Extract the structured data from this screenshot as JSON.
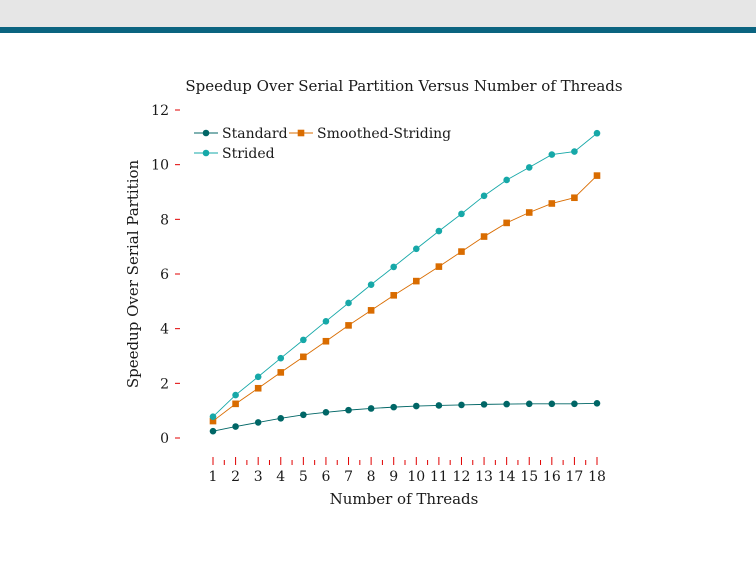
{
  "chart_data": {
    "type": "line",
    "title": "Speedup Over Serial Partition Versus Number of Threads",
    "xlabel": "Number of Threads",
    "ylabel": "Speedup Over Serial Partition",
    "x": [
      1,
      2,
      3,
      4,
      5,
      6,
      7,
      8,
      9,
      10,
      11,
      12,
      13,
      14,
      15,
      16,
      17,
      18
    ],
    "xlim": [
      1,
      18
    ],
    "ylim": [
      0,
      12
    ],
    "yticks": [
      0,
      2,
      4,
      6,
      8,
      10,
      12
    ],
    "grid": false,
    "legend": "top-left",
    "series": [
      {
        "name": "Standard",
        "color": "#006666",
        "marker": "circle",
        "values": [
          0.25,
          0.42,
          0.57,
          0.72,
          0.85,
          0.94,
          1.02,
          1.08,
          1.13,
          1.17,
          1.19,
          1.21,
          1.23,
          1.24,
          1.25,
          1.25,
          1.25,
          1.27
        ]
      },
      {
        "name": "Smoothed-Striding",
        "color": "#d96c00",
        "marker": "square",
        "values": [
          0.62,
          1.25,
          1.82,
          2.4,
          2.97,
          3.54,
          4.12,
          4.67,
          5.22,
          5.74,
          6.27,
          6.82,
          7.37,
          7.87,
          8.25,
          8.58,
          8.79,
          9.6
        ]
      },
      {
        "name": "Strided",
        "color": "#16a8a8",
        "marker": "circle",
        "values": [
          0.78,
          1.57,
          2.24,
          2.92,
          3.59,
          4.27,
          4.94,
          5.61,
          6.26,
          6.92,
          7.57,
          8.2,
          8.86,
          9.44,
          9.9,
          10.37,
          10.48,
          11.15
        ]
      }
    ]
  }
}
